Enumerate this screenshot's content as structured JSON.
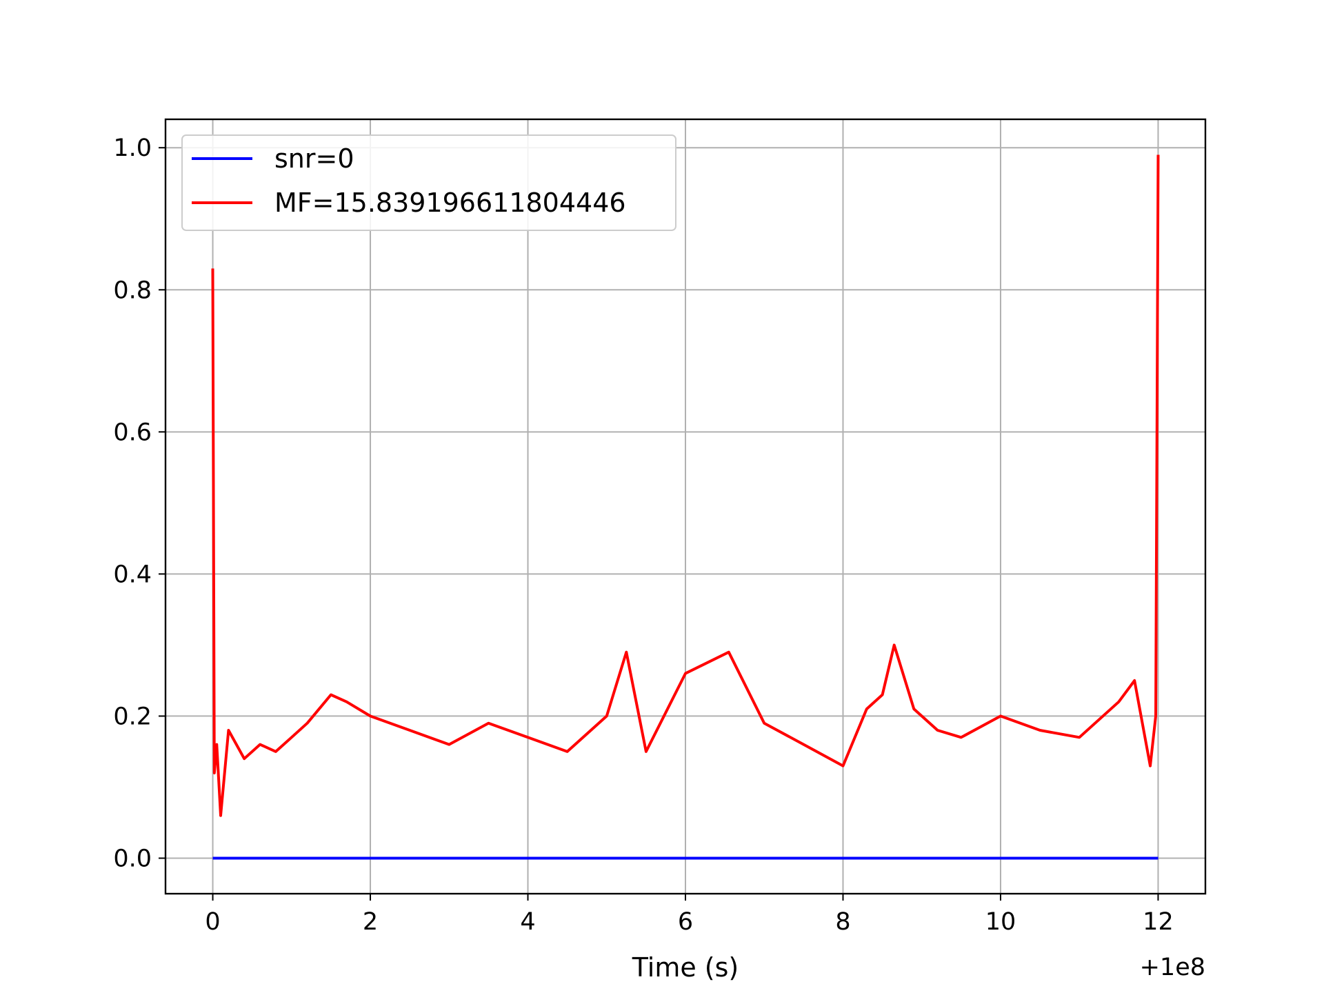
{
  "chart_data": {
    "type": "line",
    "title": "",
    "xlabel": "Time (s)",
    "ylabel": "",
    "x_offset_label": "+1e8",
    "xlim": [
      -0.6,
      12.6
    ],
    "ylim": [
      -0.05,
      1.04
    ],
    "x_ticks": [
      0,
      2,
      4,
      6,
      8,
      10,
      12
    ],
    "x_tick_labels": [
      "0",
      "2",
      "4",
      "6",
      "8",
      "10",
      "12"
    ],
    "y_ticks": [
      0.0,
      0.2,
      0.4,
      0.6,
      0.8,
      1.0
    ],
    "y_tick_labels": [
      "0.0",
      "0.2",
      "0.4",
      "0.6",
      "0.8",
      "1.0"
    ],
    "grid": true,
    "legend_position": "upper-left",
    "series": [
      {
        "name": "snr=0",
        "color": "#0000ff",
        "x": [
          0,
          12
        ],
        "y": [
          0,
          0
        ]
      },
      {
        "name": "MF=15.839196611804446",
        "color": "#ff0000",
        "x": [
          0.0,
          0.02,
          0.05,
          0.1,
          0.2,
          0.4,
          0.6,
          0.8,
          1.0,
          1.2,
          1.5,
          1.7,
          2.0,
          2.5,
          3.0,
          3.5,
          4.0,
          4.5,
          5.0,
          5.25,
          5.5,
          6.0,
          6.55,
          7.0,
          7.5,
          8.0,
          8.3,
          8.5,
          8.65,
          8.9,
          9.2,
          9.5,
          10.0,
          10.5,
          11.0,
          11.5,
          11.7,
          11.9,
          11.97,
          12.0
        ],
        "y": [
          0.83,
          0.12,
          0.16,
          0.06,
          0.18,
          0.14,
          0.16,
          0.15,
          0.17,
          0.19,
          0.23,
          0.22,
          0.2,
          0.18,
          0.16,
          0.19,
          0.17,
          0.15,
          0.2,
          0.29,
          0.15,
          0.26,
          0.29,
          0.19,
          0.16,
          0.13,
          0.21,
          0.23,
          0.3,
          0.21,
          0.18,
          0.17,
          0.2,
          0.18,
          0.17,
          0.22,
          0.25,
          0.13,
          0.2,
          0.99
        ]
      }
    ]
  }
}
